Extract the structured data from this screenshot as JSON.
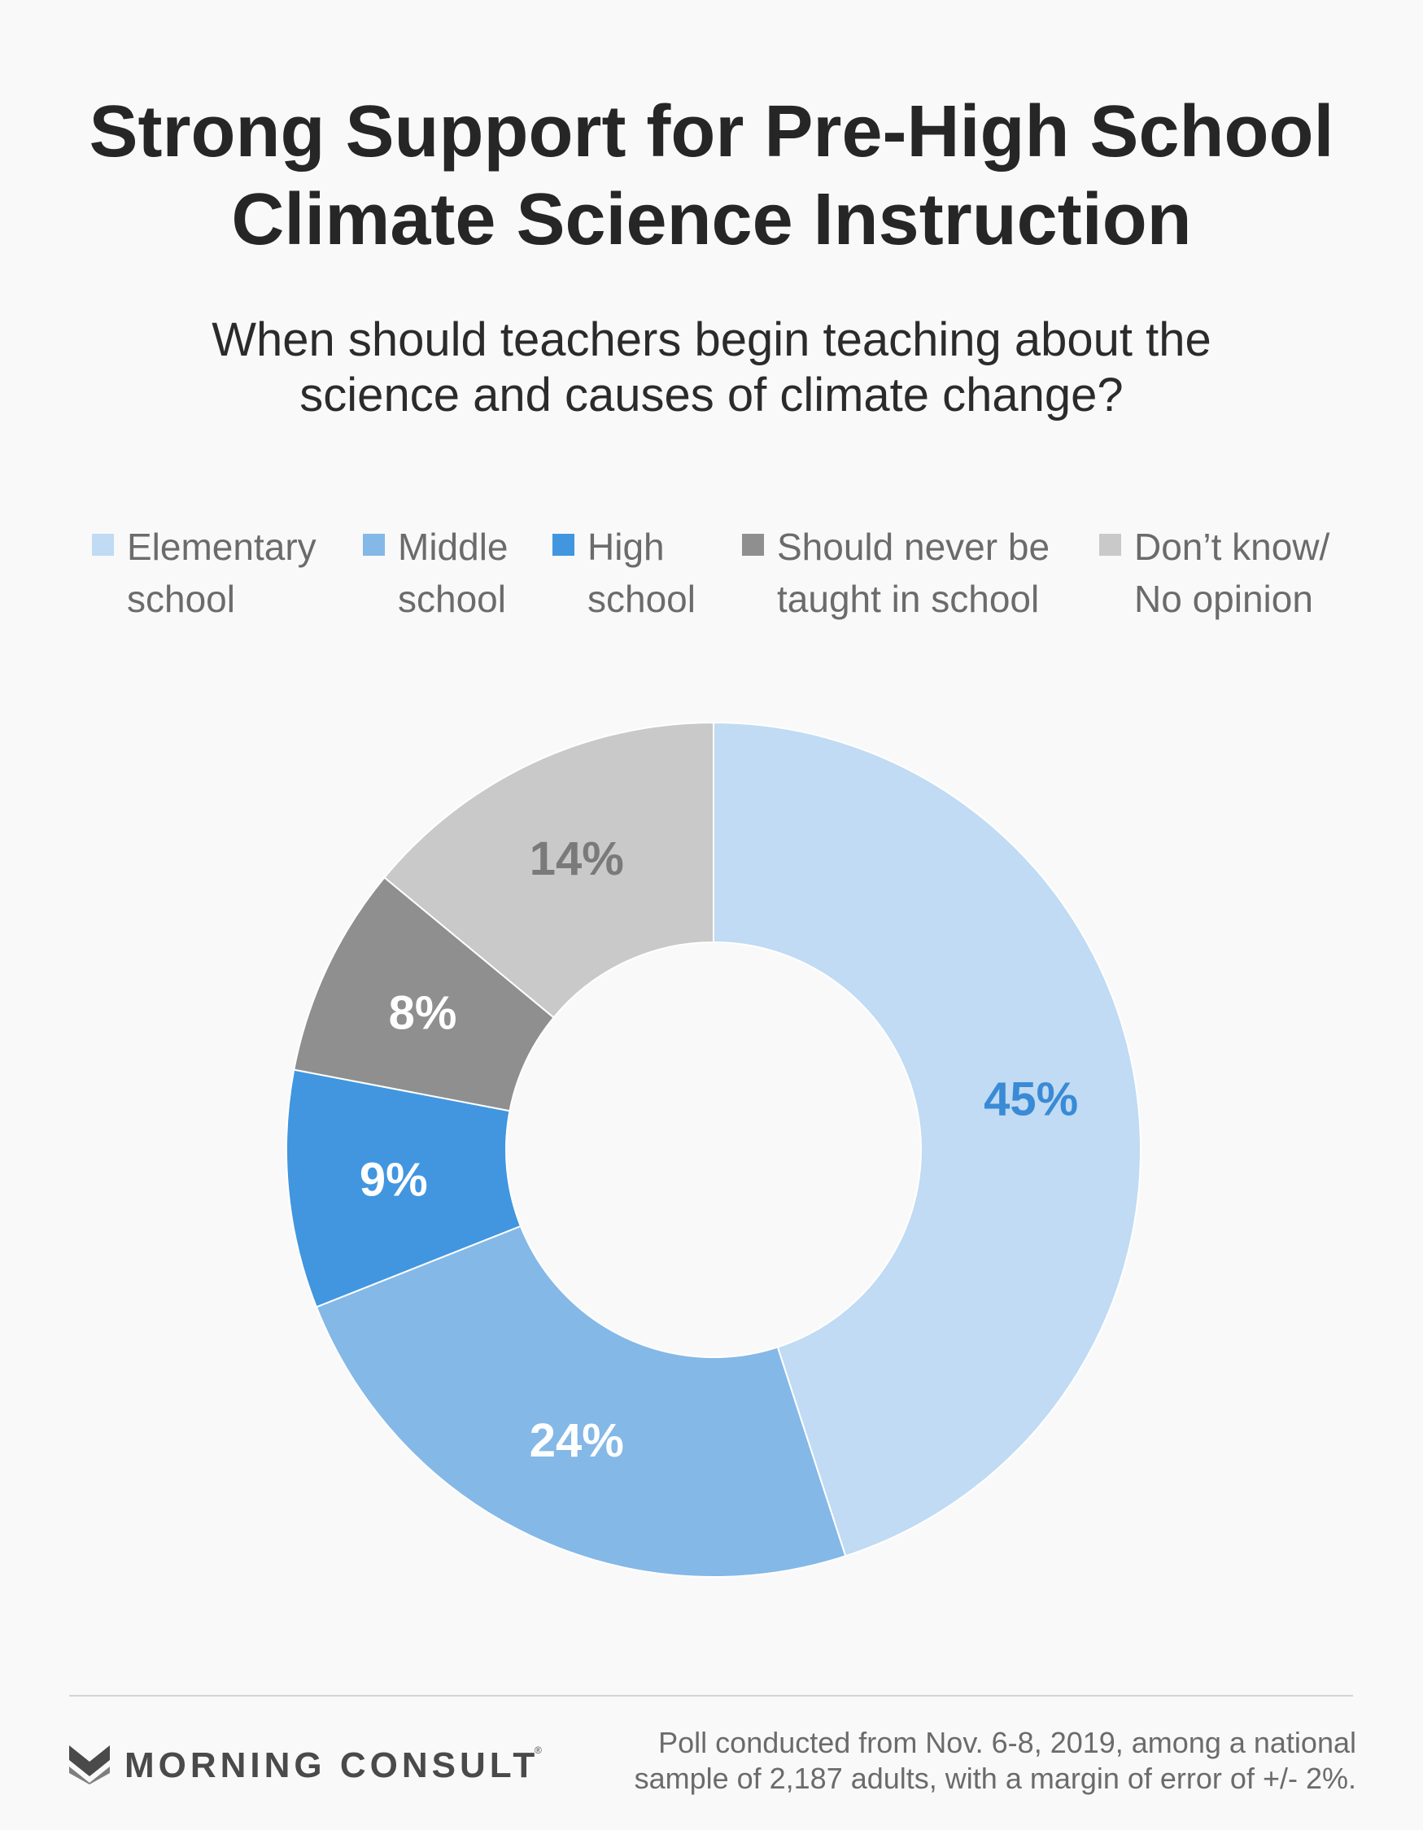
{
  "title": {
    "line1": "Strong Support for Pre-High School",
    "line2": "Climate Science Instruction"
  },
  "subtitle": {
    "line1": "When should teachers begin teaching about the",
    "line2": "science and causes of climate change?"
  },
  "legend": [
    {
      "line1": "Elementary",
      "line2": "school",
      "color": "#c0dbf3"
    },
    {
      "line1": "Middle",
      "line2": "school",
      "color": "#84b8e7"
    },
    {
      "line1": "High",
      "line2": "school",
      "color": "#4196df"
    },
    {
      "line1": "Should never be",
      "line2": "taught in school",
      "color": "#8f8f8f"
    },
    {
      "line1": "Don’t know/",
      "line2": "No opinion",
      "color": "#c9c9c9"
    }
  ],
  "chart_data": {
    "type": "pie",
    "style": "donut",
    "title": "Strong Support for Pre-High School Climate Science Instruction",
    "subtitle": "When should teachers begin teaching about the science and causes of climate change?",
    "start": "12 o'clock, clockwise",
    "slices": [
      {
        "label": "Elementary school",
        "value": 45,
        "display": "45%",
        "color": "#c0dbf3",
        "label_color": "#3a8ad6"
      },
      {
        "label": "Middle school",
        "value": 24,
        "display": "24%",
        "color": "#84b8e7",
        "label_color": "#ffffff"
      },
      {
        "label": "High school",
        "value": 9,
        "display": "9%",
        "color": "#4196df",
        "label_color": "#ffffff"
      },
      {
        "label": "Should never be taught in school",
        "value": 8,
        "display": "8%",
        "color": "#8f8f8f",
        "label_color": "#ffffff"
      },
      {
        "label": "Don’t know/ No opinion",
        "value": 14,
        "display": "14%",
        "color": "#c9c9c9",
        "label_color": "#7a7a7a"
      }
    ]
  },
  "footer": {
    "brand": "MORNING CONSULT",
    "registered": "®",
    "note_line1": "Poll conducted from Nov. 6-8, 2019, among a national",
    "note_line2": "sample of 2,187 adults, with a margin of error of +/- 2%."
  }
}
